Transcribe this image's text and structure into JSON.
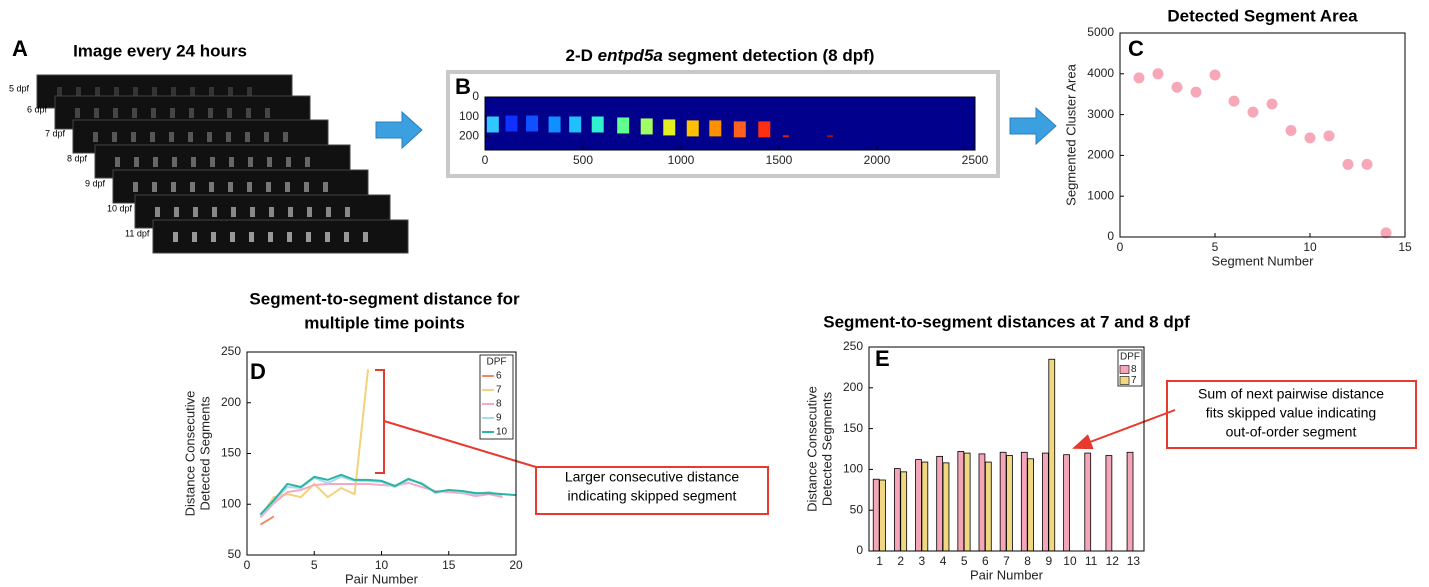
{
  "panel_a": {
    "letter": "A",
    "title": "Image every 24 hours",
    "labels": [
      "5 dpf",
      "6 dpf",
      "7 dpf",
      "8 dpf",
      "9 dpf",
      "10 dpf",
      "11 dpf"
    ]
  },
  "chart_data": [
    {
      "type": "image",
      "letter": "B",
      "title": [
        "2-D ",
        "entpd5a",
        " segment detection (8 dpf)"
      ],
      "x": [
        40,
        135,
        240,
        355,
        460,
        575,
        705,
        825,
        940,
        1060,
        1175,
        1300,
        1425,
        1535,
        1760
      ],
      "values": [
        140,
        135,
        135,
        140,
        140,
        140,
        145,
        150,
        155,
        160,
        160,
        165,
        165,
        200,
        200
      ],
      "colors": [
        "#30c8ff",
        "#1030ff",
        "#1050ff",
        "#1090ff",
        "#20c0ff",
        "#30f0d0",
        "#60ff90",
        "#a0ff60",
        "#e0f020",
        "#ffc000",
        "#ff9000",
        "#ff6020",
        "#ff3010",
        "#e02010",
        "#a01010"
      ],
      "background": "#00008c",
      "xlim": [
        0,
        2500
      ],
      "xticks": [
        0,
        500,
        1000,
        1500,
        2000,
        2500
      ],
      "ylim": [
        270,
        0
      ],
      "yticks": [
        0,
        100,
        200
      ]
    },
    {
      "type": "scatter",
      "letter": "C",
      "title": "Detected Segment Area",
      "xlabel": "Segment Number",
      "ylabel": "Segmented Cluster Area",
      "x": [
        1,
        2,
        3,
        4,
        5,
        6,
        7,
        8,
        9,
        10,
        11,
        12,
        13,
        14
      ],
      "values": [
        3900,
        4000,
        3670,
        3550,
        3970,
        3330,
        3060,
        3260,
        2610,
        2430,
        2480,
        1780,
        1780,
        100
      ],
      "color": "#f7a8b8",
      "xlim": [
        0,
        15
      ],
      "xticks": [
        0,
        5,
        10,
        15
      ],
      "ylim": [
        0,
        5000
      ],
      "yticks": [
        0,
        1000,
        2000,
        3000,
        4000,
        5000
      ]
    },
    {
      "type": "line",
      "letter": "D",
      "title": [
        "Segment-to-segment distance for",
        "multiple time points"
      ],
      "xlabel": "Pair Number",
      "ylabel": [
        "Distance Consecutive",
        "Detected Segments"
      ],
      "legend_title": "DPF",
      "x": [
        1,
        2,
        3,
        4,
        5,
        6,
        7,
        8,
        9,
        10,
        11,
        12,
        13,
        14,
        15,
        16,
        17,
        18,
        19,
        20
      ],
      "series": [
        {
          "name": "6",
          "color": "#f08a60",
          "values": [
            80,
            88,
            null,
            null,
            null,
            null,
            null,
            null,
            null,
            null,
            null,
            null,
            null,
            null,
            null,
            null,
            null,
            null,
            null,
            null
          ]
        },
        {
          "name": "7",
          "color": "#f2d27a",
          "values": [
            88,
            107,
            110,
            107,
            120,
            107,
            116,
            110,
            233,
            null,
            null,
            null,
            null,
            null,
            null,
            null,
            null,
            null,
            null,
            null
          ]
        },
        {
          "name": "8",
          "color": "#f5a9c4",
          "values": [
            87,
            101,
            112,
            114,
            119,
            120,
            120,
            120,
            120,
            119,
            118,
            121,
            117,
            113,
            112,
            111,
            108,
            110,
            107,
            null
          ]
        },
        {
          "name": "9",
          "color": "#a9d9f2",
          "values": [
            89,
            103,
            117,
            116,
            126,
            121,
            127,
            123,
            123,
            122,
            117,
            124,
            121,
            111,
            114,
            112,
            110,
            112,
            109,
            null
          ]
        },
        {
          "name": "10",
          "color": "#2bb3a3",
          "values": [
            90,
            104,
            120,
            117,
            127,
            124,
            129,
            124,
            124,
            123,
            118,
            125,
            120,
            112,
            114,
            113,
            111,
            111,
            110,
            109
          ]
        }
      ],
      "xlim": [
        0,
        20
      ],
      "xticks": [
        0,
        5,
        10,
        15,
        20
      ],
      "ylim": [
        50,
        250
      ],
      "yticks": [
        50,
        100,
        150,
        200,
        250
      ],
      "annotation": [
        "Larger consecutive distance",
        "indicating skipped segment"
      ]
    },
    {
      "type": "bar",
      "letter": "E",
      "title": "Segment-to-segment distances at 7 and 8 dpf",
      "xlabel": "Pair Number",
      "ylabel": [
        "Distance Consecutive",
        "Detected Segments"
      ],
      "legend_title": "DPF",
      "categories": [
        "1",
        "2",
        "3",
        "4",
        "5",
        "6",
        "7",
        "8",
        "9",
        "10",
        "11",
        "12",
        "13"
      ],
      "series": [
        {
          "name": "8",
          "color": "#f4a6b8",
          "values": [
            88,
            101,
            112,
            116,
            122,
            119,
            121,
            121,
            120,
            118,
            120,
            117,
            121
          ]
        },
        {
          "name": "7",
          "color": "#f0d882",
          "values": [
            87,
            97,
            109,
            108,
            120,
            109,
            117,
            113,
            235,
            null,
            null,
            null,
            null
          ]
        }
      ],
      "ylim": [
        0,
        250
      ],
      "yticks": [
        0,
        50,
        100,
        150,
        200,
        250
      ],
      "annotation": [
        "Sum of next pairwise distance",
        "fits skipped value indicating",
        "out-of-order segment"
      ]
    }
  ]
}
